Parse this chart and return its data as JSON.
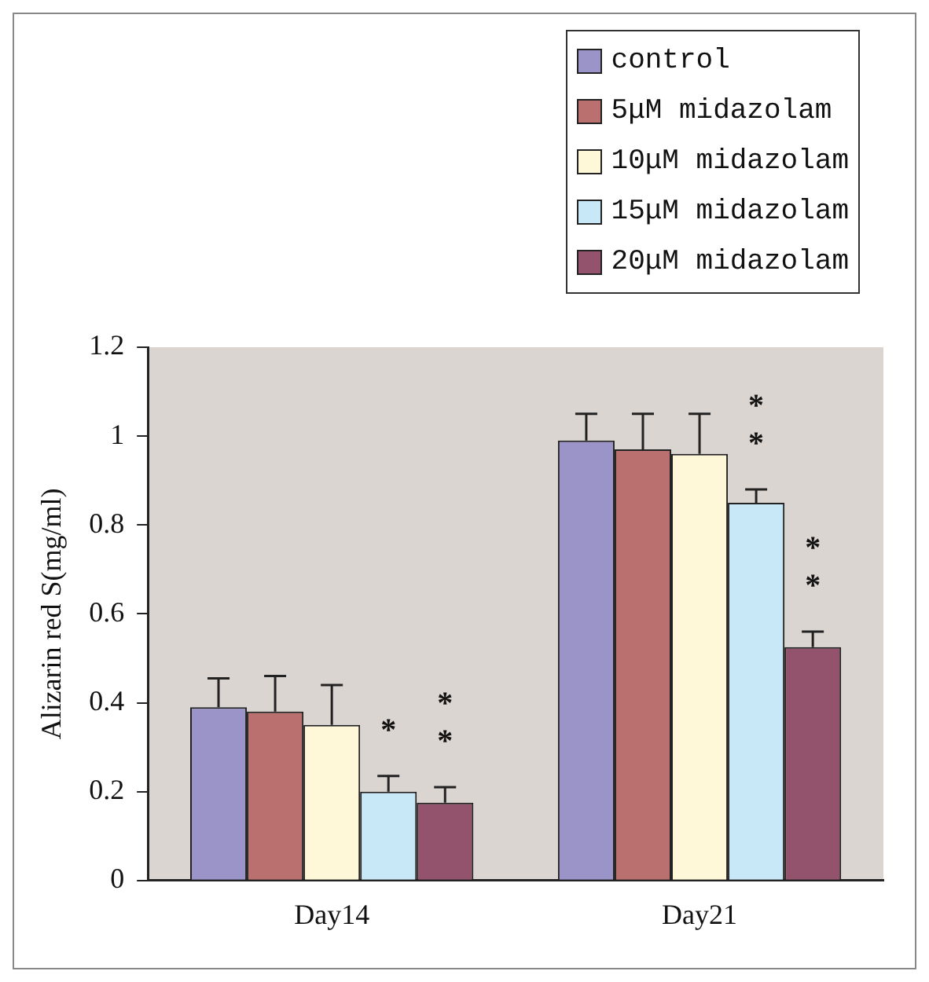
{
  "chart_data": {
    "type": "bar",
    "ylabel": "Alizarin red S(mg/ml)",
    "categories": [
      "Day14",
      "Day21"
    ],
    "ylim": [
      0,
      1.2
    ],
    "yticks": [
      0,
      0.2,
      0.4,
      0.6,
      0.8,
      1,
      1.2
    ],
    "grid": false,
    "legend": "top right",
    "series": [
      {
        "name": "control",
        "color": "#9a94c8",
        "values": [
          0.39,
          0.99
        ],
        "errors": [
          0.065,
          0.06
        ]
      },
      {
        "name": "5μM midazolam",
        "color": "#bb7070",
        "values": [
          0.38,
          0.97
        ],
        "errors": [
          0.08,
          0.08
        ]
      },
      {
        "name": "10μM midazolam",
        "color": "#fff8d8",
        "values": [
          0.35,
          0.96
        ],
        "errors": [
          0.09,
          0.09
        ]
      },
      {
        "name": "15μM midazolam",
        "color": "#c9e8f7",
        "values": [
          0.2,
          0.85
        ],
        "errors": [
          0.035,
          0.03
        ]
      },
      {
        "name": "20μM midazolam",
        "color": "#93536c",
        "values": [
          0.175,
          0.525
        ],
        "errors": [
          0.035,
          0.035
        ]
      }
    ],
    "annotations": [
      "*",
      "**",
      "**",
      "**"
    ]
  }
}
